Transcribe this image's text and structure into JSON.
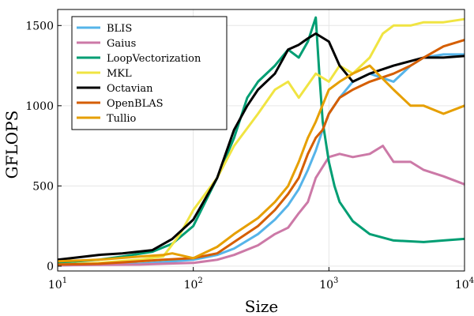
{
  "chart_data": {
    "type": "line",
    "xlabel": "Size",
    "ylabel": "GFLOPS",
    "x_scale": "log10",
    "xlim": [
      10,
      10000
    ],
    "ylim": [
      -30,
      1600
    ],
    "x_ticks": [
      {
        "value": 10,
        "base": "10",
        "exp": "1"
      },
      {
        "value": 100,
        "base": "10",
        "exp": "2"
      },
      {
        "value": 1000,
        "base": "10",
        "exp": "3"
      },
      {
        "value": 10000,
        "base": "10",
        "exp": "4"
      }
    ],
    "y_ticks": [
      0,
      500,
      1000,
      1500
    ],
    "grid": true,
    "legend_position": "top-left",
    "series": [
      {
        "name": "BLIS",
        "color": "#56B4E9",
        "x": [
          10,
          20,
          40,
          60,
          100,
          150,
          200,
          300,
          400,
          500,
          600,
          700,
          800,
          900,
          1000,
          1200,
          1500,
          2000,
          3000,
          4000,
          5000,
          7000,
          10000
        ],
        "y": [
          5,
          10,
          15,
          25,
          40,
          70,
          110,
          200,
          290,
          380,
          480,
          600,
          720,
          850,
          950,
          1050,
          1150,
          1200,
          1150,
          1250,
          1300,
          1320,
          1320
        ]
      },
      {
        "name": "Gaius",
        "color": "#CC79A7",
        "x": [
          10,
          20,
          40,
          60,
          100,
          150,
          200,
          300,
          400,
          500,
          600,
          700,
          800,
          1000,
          1200,
          1500,
          2000,
          2500,
          3000,
          4000,
          5000,
          7000,
          10000
        ],
        "y": [
          5,
          8,
          10,
          15,
          20,
          40,
          70,
          130,
          200,
          240,
          330,
          400,
          550,
          680,
          700,
          680,
          700,
          750,
          650,
          650,
          600,
          560,
          510
        ]
      },
      {
        "name": "LoopVectorization",
        "color": "#009E73",
        "x": [
          10,
          20,
          30,
          50,
          70,
          100,
          150,
          200,
          250,
          300,
          400,
          500,
          600,
          700,
          800,
          850,
          900,
          1000,
          1100,
          1200,
          1500,
          2000,
          3000,
          5000,
          7000,
          10000
        ],
        "y": [
          20,
          40,
          60,
          90,
          140,
          250,
          550,
          800,
          1050,
          1150,
          1250,
          1350,
          1300,
          1400,
          1550,
          1200,
          900,
          650,
          500,
          400,
          280,
          200,
          160,
          150,
          160,
          170
        ]
      },
      {
        "name": "MKL",
        "color": "#F0E442",
        "x": [
          10,
          20,
          40,
          60,
          80,
          100,
          150,
          200,
          300,
          400,
          500,
          600,
          800,
          1000,
          1200,
          1500,
          2000,
          2500,
          3000,
          4000,
          5000,
          7000,
          10000
        ],
        "y": [
          10,
          20,
          40,
          60,
          200,
          350,
          550,
          750,
          950,
          1100,
          1150,
          1050,
          1200,
          1150,
          1250,
          1200,
          1300,
          1450,
          1500,
          1500,
          1520,
          1520,
          1540
        ]
      },
      {
        "name": "Octavian",
        "color": "#000000",
        "x": [
          10,
          20,
          30,
          50,
          70,
          100,
          150,
          200,
          250,
          300,
          400,
          500,
          600,
          700,
          800,
          1000,
          1200,
          1500,
          2000,
          3000,
          5000,
          7000,
          10000
        ],
        "y": [
          40,
          70,
          80,
          100,
          170,
          290,
          550,
          850,
          1000,
          1100,
          1200,
          1350,
          1380,
          1420,
          1450,
          1400,
          1250,
          1150,
          1200,
          1250,
          1300,
          1300,
          1310
        ]
      },
      {
        "name": "OpenBLAS",
        "color": "#D55E00",
        "x": [
          10,
          20,
          40,
          60,
          100,
          150,
          200,
          300,
          400,
          500,
          600,
          700,
          800,
          900,
          1000,
          1200,
          1500,
          2000,
          3000,
          4000,
          5000,
          7000,
          10000
        ],
        "y": [
          10,
          15,
          30,
          40,
          50,
          80,
          150,
          250,
          350,
          450,
          550,
          700,
          800,
          850,
          950,
          1050,
          1100,
          1150,
          1200,
          1250,
          1300,
          1370,
          1410
        ]
      },
      {
        "name": "Tullio",
        "color": "#E69F00",
        "x": [
          10,
          20,
          40,
          60,
          70,
          100,
          150,
          200,
          300,
          400,
          500,
          600,
          700,
          800,
          1000,
          1200,
          1500,
          2000,
          3000,
          4000,
          5000,
          7000,
          10000
        ],
        "y": [
          30,
          40,
          60,
          70,
          80,
          50,
          120,
          200,
          300,
          400,
          500,
          650,
          800,
          900,
          1100,
          1150,
          1200,
          1250,
          1100,
          1000,
          1000,
          950,
          1000
        ]
      }
    ]
  }
}
